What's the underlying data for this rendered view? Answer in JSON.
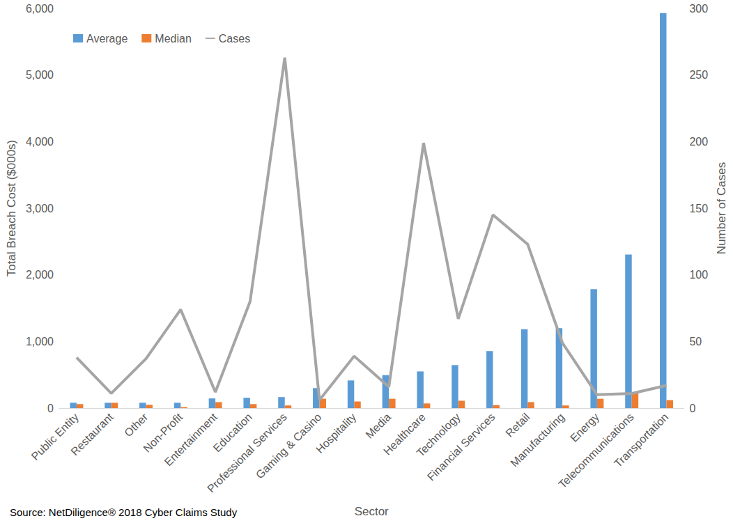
{
  "chart_data": {
    "type": "bar",
    "x_label": "Sector",
    "y_label": "Total Breach Cost ($000s)",
    "y2_label": "Number of Cases",
    "source": "Source: NetDiligence® 2018 Cyber Claims Study",
    "categories": [
      "Public Entity",
      "Restaurant",
      "Other",
      "Non-Profit",
      "Entertainment",
      "Education",
      "Professional Services",
      "Gaming & Casino",
      "Hospitality",
      "Media",
      "Healthcare",
      "Technology",
      "Financial Services",
      "Retail",
      "Manufacturing",
      "Energy",
      "Telecommunications",
      "Transportation"
    ],
    "series": [
      {
        "name": "Average",
        "type": "bar",
        "color": "#5B9BD5",
        "values": [
          80,
          80,
          80,
          80,
          145,
          155,
          165,
          300,
          415,
          495,
          550,
          645,
          855,
          1185,
          1200,
          1785,
          2305,
          5930
        ]
      },
      {
        "name": "Median",
        "type": "bar",
        "color": "#ED7D31",
        "values": [
          60,
          80,
          50,
          15,
          90,
          60,
          40,
          140,
          100,
          140,
          70,
          110,
          45,
          90,
          40,
          140,
          235,
          120
        ]
      },
      {
        "name": "Cases",
        "type": "line",
        "axis": "y2",
        "color": "#A5A5A5",
        "marker": "none",
        "values": [
          38,
          11,
          37,
          74,
          12,
          80,
          263,
          6,
          39,
          16,
          199,
          67,
          145,
          123,
          49,
          10,
          11,
          17
        ]
      }
    ],
    "ylim": [
      0,
      6000
    ],
    "yticks": [
      0,
      {
        "value": 1000,
        "label": "1,000"
      },
      {
        "value": 2000,
        "label": "2,000"
      },
      {
        "value": 3000,
        "label": "3,000"
      },
      {
        "value": 4000,
        "label": "4,000"
      },
      {
        "value": 5000,
        "label": "5,000"
      },
      {
        "value": 6000,
        "label": "6,000"
      }
    ],
    "y2lim": [
      0,
      300
    ],
    "y2ticks": [
      0,
      50,
      100,
      150,
      200,
      250,
      300
    ],
    "legend": "top-left",
    "grid": false
  }
}
